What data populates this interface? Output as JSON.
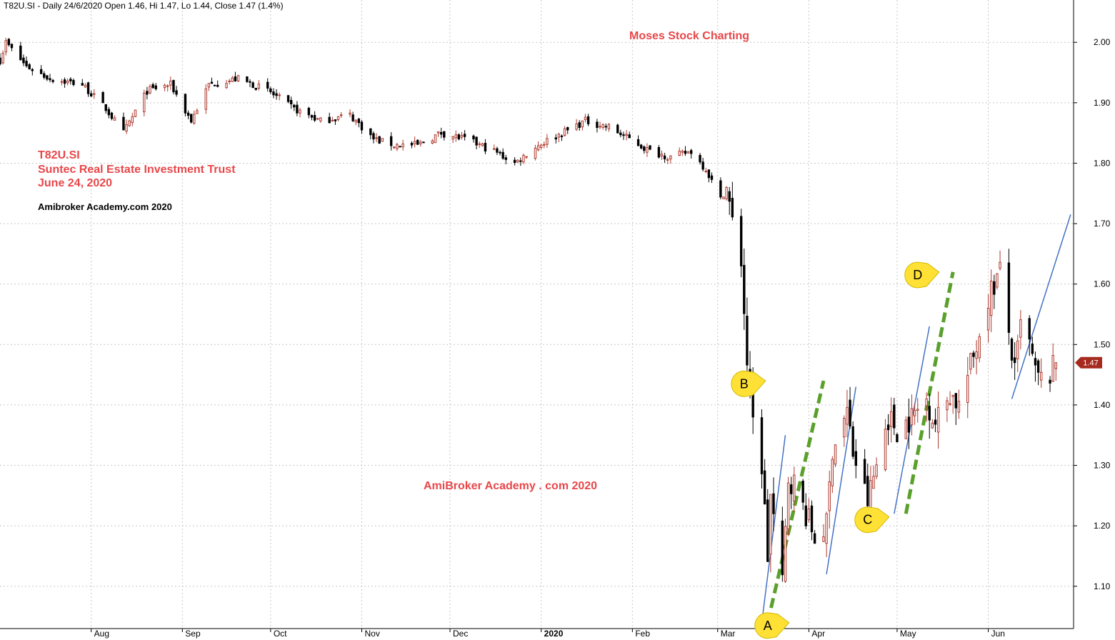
{
  "header": {
    "text": "T82U.SI - Daily 24/6/2020 Open 1.46, Hi 1.47, Lo 1.44, Close 1.47 (1.4%)"
  },
  "annotations": {
    "brand": "Moses Stock Charting",
    "ticker": "T82U.SI",
    "company": "Suntec Real Estate Investment Trust",
    "date": "June 24, 2020",
    "watermark_small": "Amibroker Academy.com  2020",
    "watermark_large": "AmiBroker Academy . com  2020",
    "colors": {
      "red": "#e8474a",
      "bull": "#b03a2e",
      "bear": "#000000",
      "blue": "#4472c4",
      "green": "#5aa02c",
      "callout": "#ffe135"
    }
  },
  "price_tag": {
    "label": "1.47",
    "value": 1.47,
    "color": "#a62a1e"
  },
  "callouts": [
    {
      "label": "A",
      "date": "2020-03-18",
      "price": 1.035
    },
    {
      "label": "B",
      "date": "2020-03-10",
      "price": 1.435
    },
    {
      "label": "C",
      "date": "2020-04-21",
      "price": 1.21
    },
    {
      "label": "D",
      "date": "2020-05-08",
      "price": 1.615
    }
  ],
  "chart_data": {
    "type": "candlestick",
    "title": "",
    "ylim": [
      1.03,
      2.07
    ],
    "yticks": [
      1.1,
      1.2,
      1.3,
      1.4,
      1.5,
      1.6,
      1.7,
      1.8,
      1.9,
      2.0
    ],
    "ytick_labels": [
      "1.10",
      "1.20",
      "1.30",
      "1.40",
      "1.50",
      "1.60",
      "1.70",
      "1.80",
      "1.90",
      "2.00"
    ],
    "y_axis": "right",
    "grid": true,
    "x_start": "2019-07-01",
    "x_end": "2020-06-30",
    "months": [
      {
        "date": "2019-08-01",
        "label": "Aug",
        "bold": false
      },
      {
        "date": "2019-09-01",
        "label": "Sep",
        "bold": false
      },
      {
        "date": "2019-10-01",
        "label": "Oct",
        "bold": false
      },
      {
        "date": "2019-11-01",
        "label": "Nov",
        "bold": false
      },
      {
        "date": "2019-12-01",
        "label": "Dec",
        "bold": false
      },
      {
        "date": "2020-01-01",
        "label": "2020",
        "bold": true
      },
      {
        "date": "2020-02-01",
        "label": "Feb",
        "bold": false
      },
      {
        "date": "2020-03-01",
        "label": "Mar",
        "bold": false
      },
      {
        "date": "2020-04-01",
        "label": "Apr",
        "bold": false
      },
      {
        "date": "2020-05-01",
        "label": "May",
        "bold": false
      },
      {
        "date": "2020-06-01",
        "label": "Jun",
        "bold": false
      }
    ],
    "anchors": [
      [
        "2019-07-01",
        1.97
      ],
      [
        "2019-07-03",
        2.0
      ],
      [
        "2019-07-10",
        1.96
      ],
      [
        "2019-07-18",
        1.94
      ],
      [
        "2019-07-29",
        1.93
      ],
      [
        "2019-08-06",
        1.89
      ],
      [
        "2019-08-12",
        1.85
      ],
      [
        "2019-08-20",
        1.92
      ],
      [
        "2019-08-28",
        1.93
      ],
      [
        "2019-09-04",
        1.87
      ],
      [
        "2019-09-10",
        1.93
      ],
      [
        "2019-09-20",
        1.94
      ],
      [
        "2019-09-30",
        1.92
      ],
      [
        "2019-10-09",
        1.89
      ],
      [
        "2019-10-18",
        1.87
      ],
      [
        "2019-10-28",
        1.88
      ],
      [
        "2019-11-05",
        1.84
      ],
      [
        "2019-11-12",
        1.83
      ],
      [
        "2019-11-20",
        1.83
      ],
      [
        "2019-11-28",
        1.85
      ],
      [
        "2019-12-06",
        1.84
      ],
      [
        "2019-12-16",
        1.82
      ],
      [
        "2019-12-23",
        1.8
      ],
      [
        "2019-12-31",
        1.83
      ],
      [
        "2020-01-08",
        1.85
      ],
      [
        "2020-01-16",
        1.87
      ],
      [
        "2020-01-24",
        1.86
      ],
      [
        "2020-01-31",
        1.84
      ],
      [
        "2020-02-07",
        1.82
      ],
      [
        "2020-02-14",
        1.81
      ],
      [
        "2020-02-21",
        1.82
      ],
      [
        "2020-02-26",
        1.79
      ],
      [
        "2020-03-02",
        1.74
      ],
      [
        "2020-03-04",
        1.76
      ],
      [
        "2020-03-06",
        1.7
      ],
      [
        "2020-03-09",
        1.64
      ],
      [
        "2020-03-11",
        1.47
      ],
      [
        "2020-03-13",
        1.37
      ],
      [
        "2020-03-16",
        1.3
      ],
      [
        "2020-03-18",
        1.15
      ],
      [
        "2020-03-19",
        1.25
      ],
      [
        "2020-03-23",
        1.1
      ],
      [
        "2020-03-25",
        1.28
      ],
      [
        "2020-03-27",
        1.27
      ],
      [
        "2020-03-31",
        1.22
      ],
      [
        "2020-04-03",
        1.18
      ],
      [
        "2020-04-07",
        1.2
      ],
      [
        "2020-04-09",
        1.33
      ],
      [
        "2020-04-14",
        1.39
      ],
      [
        "2020-04-16",
        1.32
      ],
      [
        "2020-04-21",
        1.24
      ],
      [
        "2020-04-24",
        1.3
      ],
      [
        "2020-04-28",
        1.38
      ],
      [
        "2020-05-01",
        1.36
      ],
      [
        "2020-05-06",
        1.38
      ],
      [
        "2020-05-11",
        1.41
      ],
      [
        "2020-05-14",
        1.37
      ],
      [
        "2020-05-19",
        1.42
      ],
      [
        "2020-05-22",
        1.4
      ],
      [
        "2020-05-27",
        1.48
      ],
      [
        "2020-06-01",
        1.58
      ],
      [
        "2020-06-03",
        1.6
      ],
      [
        "2020-06-05",
        1.62
      ],
      [
        "2020-06-08",
        1.52
      ],
      [
        "2020-06-10",
        1.45
      ],
      [
        "2020-06-12",
        1.53
      ],
      [
        "2020-06-15",
        1.5
      ],
      [
        "2020-06-17",
        1.45
      ],
      [
        "2020-06-19",
        1.44
      ],
      [
        "2020-06-22",
        1.45
      ],
      [
        "2020-06-24",
        1.47
      ]
    ],
    "trendlines": [
      {
        "color": "#4472c4",
        "style": "solid",
        "points": [
          [
            "2020-03-16",
            1.04
          ],
          [
            "2020-03-24",
            1.35
          ]
        ]
      },
      {
        "color": "#4472c4",
        "style": "solid",
        "points": [
          [
            "2020-04-07",
            1.12
          ],
          [
            "2020-04-17",
            1.43
          ]
        ]
      },
      {
        "color": "#4472c4",
        "style": "solid",
        "points": [
          [
            "2020-04-30",
            1.22
          ],
          [
            "2020-05-12",
            1.53
          ]
        ]
      },
      {
        "color": "#4472c4",
        "style": "solid",
        "points": [
          [
            "2020-06-09",
            1.41
          ],
          [
            "2020-06-29",
            1.715
          ]
        ]
      },
      {
        "color": "#5aa02c",
        "style": "dashed",
        "points": [
          [
            "2020-03-18",
            1.04
          ],
          [
            "2020-04-06",
            1.44
          ]
        ]
      },
      {
        "color": "#5aa02c",
        "style": "dashed",
        "points": [
          [
            "2020-05-04",
            1.22
          ],
          [
            "2020-05-20",
            1.62
          ]
        ]
      }
    ],
    "last": {
      "date": "2020-06-24",
      "open": 1.46,
      "high": 1.47,
      "low": 1.44,
      "close": 1.47
    }
  }
}
